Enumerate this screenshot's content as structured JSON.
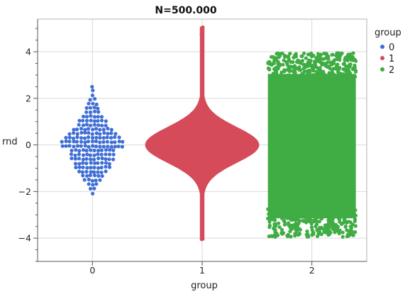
{
  "chart_data": {
    "type": "scatter",
    "title": "N=500.000",
    "xlabel": "group",
    "ylabel": "rnd",
    "categories": [
      "0",
      "1",
      "2"
    ],
    "xlim": [
      -0.5,
      2.5
    ],
    "ylim": [
      -5.0,
      5.4
    ],
    "yticks": [
      -4,
      -2,
      0,
      2,
      4
    ],
    "grid": true,
    "legend": {
      "title": "group",
      "placement": "right",
      "entries": [
        "0",
        "1",
        "2"
      ]
    },
    "series": [
      {
        "name": "0",
        "color": "#3f6fd6",
        "display": "beeswarm",
        "y_range": [
          -2.1,
          2.5
        ]
      },
      {
        "name": "1",
        "color": "#d64b5a",
        "display": "violin",
        "y_range": [
          -4.1,
          5.05
        ]
      },
      {
        "name": "2",
        "color": "#3fac44",
        "display": "jitter-band",
        "y_range": [
          -4.6,
          4.4
        ]
      }
    ]
  }
}
